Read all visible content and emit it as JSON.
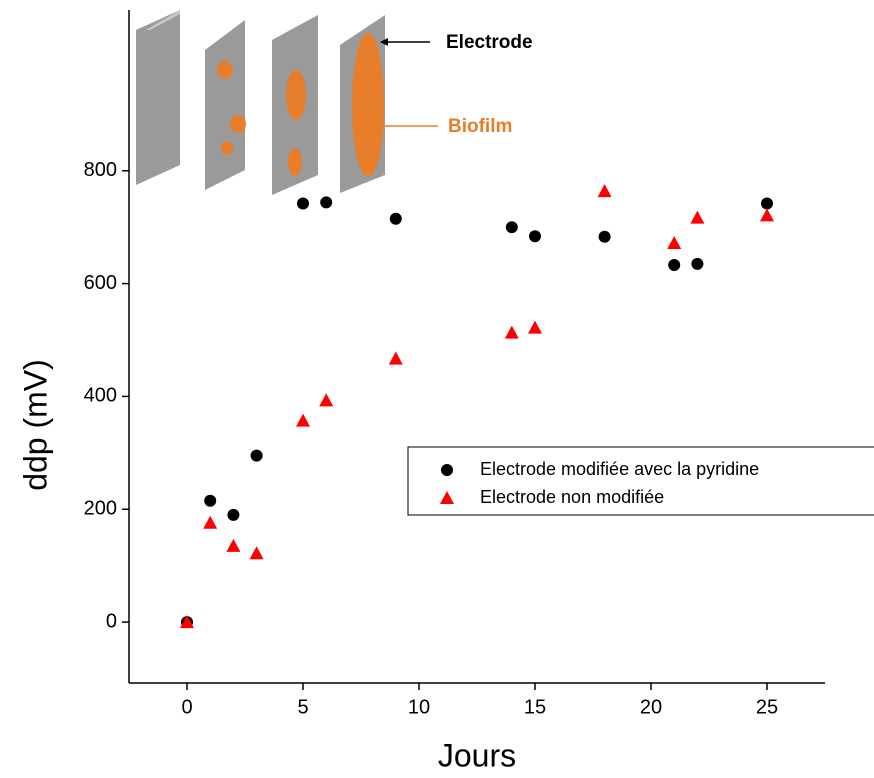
{
  "chart_data": {
    "type": "scatter",
    "x_label": "Jours",
    "y_label": "ddp (mV)",
    "annotations": [
      "Electrode",
      "Biofilm"
    ],
    "xlim": [
      -2.5,
      27.5
    ],
    "xticks": [
      0,
      5,
      10,
      15,
      20,
      25
    ],
    "ylim": [
      -108,
      1085
    ],
    "yticks": [
      0,
      200,
      400,
      600,
      800
    ],
    "legend": "right",
    "series": [
      {
        "name": "Electrode modifiée avec la pyridine",
        "color": "#000000",
        "marker": "circle",
        "x": [
          0,
          1,
          2,
          3,
          5,
          6,
          9,
          14,
          15,
          18,
          21,
          22,
          25
        ],
        "values": [
          0,
          215,
          190,
          295,
          742,
          744,
          715,
          700,
          684,
          683,
          633,
          635,
          742
        ]
      },
      {
        "name": "Electrode non modifiée",
        "color": "#ff0000",
        "marker": "triangle",
        "x": [
          0,
          1,
          2,
          3,
          5,
          6,
          9,
          14,
          15,
          18,
          21,
          22,
          25
        ],
        "values": [
          0,
          176,
          135,
          122,
          357,
          393,
          467,
          513,
          522,
          764,
          672,
          717,
          721
        ]
      }
    ]
  }
}
